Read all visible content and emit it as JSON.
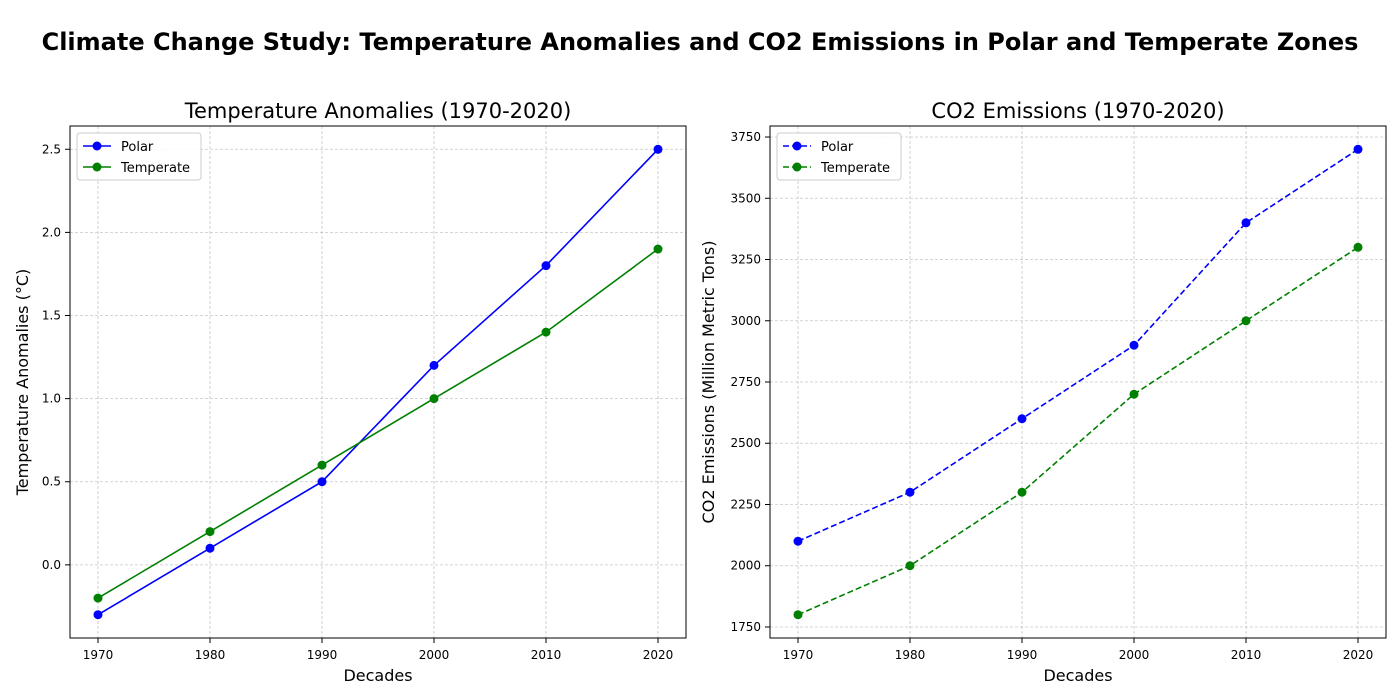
{
  "suptitle": "Climate Change Study: Temperature Anomalies and CO2 Emissions in Polar and Temperate Zones",
  "chart_data": [
    {
      "type": "line",
      "title": "Temperature Anomalies (1970-2020)",
      "xlabel": "Decades",
      "ylabel": "Temperature Anomalies (°C)",
      "x": [
        1970,
        1980,
        1990,
        2000,
        2010,
        2020
      ],
      "xticks": [
        1970,
        1980,
        1990,
        2000,
        2010,
        2020
      ],
      "yticks": [
        0.0,
        0.5,
        1.0,
        1.5,
        2.0,
        2.5
      ],
      "ytick_labels": [
        "0.0",
        "0.5",
        "1.0",
        "1.5",
        "2.0",
        "2.5"
      ],
      "xlim": [
        1967.5,
        2022.5
      ],
      "ylim": [
        -0.44,
        2.64
      ],
      "grid": true,
      "legend_position": "upper left",
      "series": [
        {
          "name": "Polar",
          "values": [
            -0.3,
            0.1,
            0.5,
            1.2,
            1.8,
            2.5
          ],
          "color": "#0000ff",
          "linestyle": "solid",
          "marker": "circle"
        },
        {
          "name": "Temperate",
          "values": [
            -0.2,
            0.2,
            0.6,
            1.0,
            1.4,
            1.9
          ],
          "color": "#008000",
          "linestyle": "solid",
          "marker": "circle"
        }
      ]
    },
    {
      "type": "line",
      "title": "CO2 Emissions (1970-2020)",
      "xlabel": "Decades",
      "ylabel": "CO2 Emissions (Million Metric Tons)",
      "x": [
        1970,
        1980,
        1990,
        2000,
        2010,
        2020
      ],
      "xticks": [
        1970,
        1980,
        1990,
        2000,
        2010,
        2020
      ],
      "yticks": [
        1750,
        2000,
        2250,
        2500,
        2750,
        3000,
        3250,
        3500,
        3750
      ],
      "ytick_labels": [
        "1750",
        "2000",
        "2250",
        "2500",
        "2750",
        "3000",
        "3250",
        "3500",
        "3750"
      ],
      "xlim": [
        1967.5,
        2022.5
      ],
      "ylim": [
        1705,
        3795
      ],
      "grid": true,
      "legend_position": "upper left",
      "series": [
        {
          "name": "Polar",
          "values": [
            2100,
            2300,
            2600,
            2900,
            3400,
            3700
          ],
          "color": "#0000ff",
          "linestyle": "dashed",
          "marker": "circle"
        },
        {
          "name": "Temperate",
          "values": [
            1800,
            2000,
            2300,
            2700,
            3000,
            3300
          ],
          "color": "#008000",
          "linestyle": "dashed",
          "marker": "circle"
        }
      ]
    }
  ]
}
